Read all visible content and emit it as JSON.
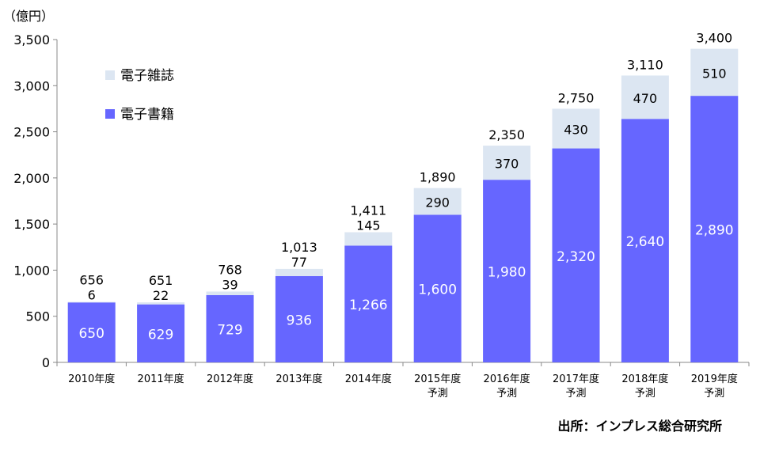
{
  "chart_data": {
    "type": "bar",
    "stacked": true,
    "unit_label": "（億円）",
    "categories": [
      [
        "2010年度"
      ],
      [
        "2011年度"
      ],
      [
        "2012年度"
      ],
      [
        "2013年度"
      ],
      [
        "2014年度"
      ],
      [
        "2015年度",
        "予測"
      ],
      [
        "2016年度",
        "予測"
      ],
      [
        "2017年度",
        "予測"
      ],
      [
        "2018年度",
        "予測"
      ],
      [
        "2019年度",
        "予測"
      ]
    ],
    "series": [
      {
        "name": "電子書籍",
        "color": "#6666ff",
        "values": [
          650,
          629,
          729,
          936,
          1266,
          1600,
          1980,
          2320,
          2640,
          2890
        ]
      },
      {
        "name": "電子雑誌",
        "color": "#dce6f2",
        "values": [
          6,
          22,
          39,
          77,
          145,
          290,
          370,
          430,
          470,
          510
        ]
      }
    ],
    "totals": [
      656,
      651,
      768,
      1013,
      1411,
      1890,
      2350,
      2750,
      3110,
      3400
    ],
    "ylim": [
      0,
      3500
    ],
    "yticks": [
      0,
      500,
      1000,
      1500,
      2000,
      2500,
      3000,
      3500
    ],
    "legend_position": "top-left",
    "grid": false,
    "source": "出所：インプレス総合研究所"
  }
}
